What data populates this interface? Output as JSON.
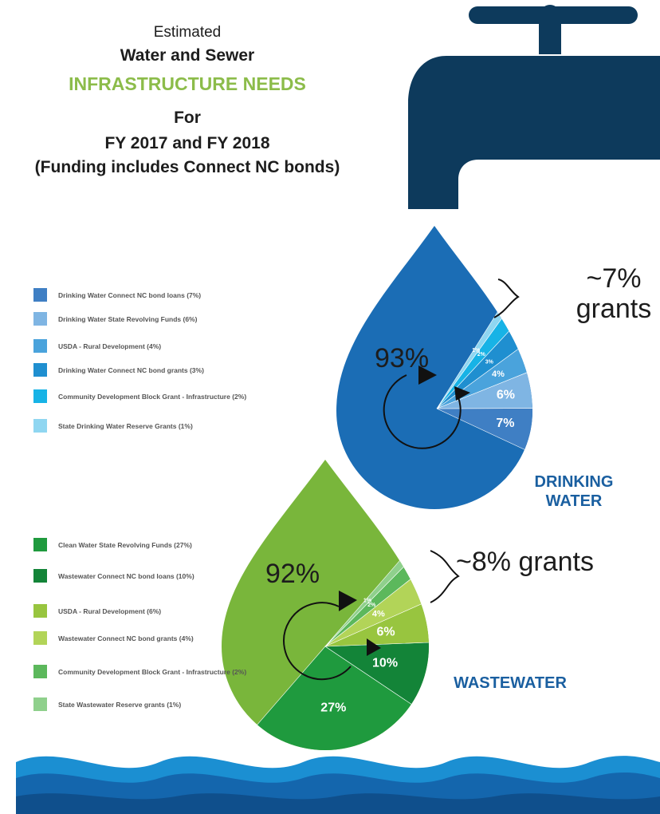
{
  "header": {
    "line1": "Estimated",
    "line2": "Water and Sewer",
    "line3": "INFRASTRUCTURE NEEDS",
    "line4": "For",
    "line5": "FY 2017 and FY 2018",
    "line6": "(Funding includes Connect NC bonds)"
  },
  "chart_data": [
    {
      "type": "pie",
      "title": "DRINKING WATER",
      "categories": [
        "Drinking Water Connect NC bond loans (7%)",
        "Drinking Water State Revolving Funds (6%)",
        "USDA - Rural Development (4%)",
        "Drinking Water Connect NC bond grants (3%)",
        "Community Development Block Grant - Infrastructure (2%)",
        "State Drinking Water Reserve Grants (1%)"
      ],
      "values": [
        7,
        6,
        4,
        3,
        2,
        1
      ],
      "value_labels": [
        "7%",
        "6%",
        "4%",
        "3%",
        "2%",
        "1%"
      ],
      "colors": [
        "#3f7fc4",
        "#7fb5e3",
        "#4aa3dc",
        "#1f8fd0",
        "#17b3e6",
        "#8fd6f1"
      ],
      "base_color": "#1b6db5",
      "annotations": [
        "93%",
        "~7% grants"
      ]
    },
    {
      "type": "pie",
      "title": "WASTEWATER",
      "categories": [
        "Clean Water State Revolving Funds (27%)",
        "Wastewater Connect NC bond loans (10%)",
        "USDA - Rural Development (6%)",
        "Wastewater Connect NC bond grants (4%)",
        "Community Development Block Grant - Infrastructure (2%)",
        "State Wastewater Reserve grants (1%)"
      ],
      "values": [
        27,
        10,
        6,
        4,
        2,
        1
      ],
      "value_labels": [
        "27%",
        "10%",
        "6%",
        "4%",
        "2%",
        "1%"
      ],
      "colors": [
        "#1f9a3e",
        "#138438",
        "#98c53f",
        "#b2d458",
        "#5cb85c",
        "#8fd08c"
      ],
      "base_color": "#79b63b",
      "annotations": [
        "92%",
        "~8% grants"
      ]
    }
  ]
}
